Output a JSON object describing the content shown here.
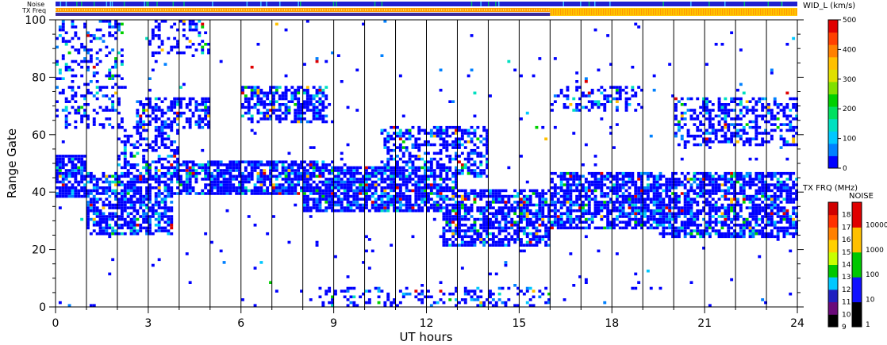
{
  "chart_data": {
    "type": "heatmap",
    "title": "",
    "xlabel": "UT hours",
    "ylabel": "Range Gate",
    "xlim": [
      0,
      24
    ],
    "ylim": [
      0,
      100
    ],
    "xticks": [
      0,
      3,
      6,
      9,
      12,
      15,
      18,
      21,
      24
    ],
    "yticks": [
      0,
      20,
      40,
      60,
      80,
      100
    ],
    "hour_grid": true,
    "top_strip_labels": {
      "noise": "Noise",
      "txfreq": "TX Freq"
    },
    "frequency_change_hour": 16,
    "width_colorbar": {
      "title": "WID_L (km/s)",
      "ticks": [
        0,
        100,
        200,
        300,
        400,
        500
      ],
      "range": [
        0,
        500
      ],
      "colors": [
        "#0000ff",
        "#0080ff",
        "#00c8ff",
        "#00e0c0",
        "#00e060",
        "#00d000",
        "#80e000",
        "#e0e000",
        "#ffc000",
        "#ff8000",
        "#ff4000",
        "#e00000"
      ]
    },
    "txfreq_colorbar": {
      "title": "TX FRQ (MHz)",
      "ticks": [
        9,
        10,
        11,
        12,
        13,
        14,
        15,
        16,
        17,
        18
      ],
      "colors": [
        "#000000",
        "#6a0a7a",
        "#2020c0",
        "#00c8ff",
        "#00c800",
        "#c8ff00",
        "#ffd000",
        "#ff8000",
        "#ff3000",
        "#d00000"
      ]
    },
    "noise_colorbar": {
      "title": "NOISE",
      "ticks": [
        "1",
        "10",
        "100",
        "1000",
        "10000"
      ],
      "colors": [
        "#000000",
        "#1010ff",
        "#00c800",
        "#ffc000",
        "#e00000"
      ]
    },
    "bands": [
      {
        "name": "",
        "x0": 0.0,
        "x1": 1.0,
        "ylo": 38,
        "yhi": 52,
        "density": 0.8
      },
      {
        "name": "",
        "x0": 1.0,
        "x1": 3.8,
        "ylo": 25,
        "yhi": 46,
        "density": 0.65
      },
      {
        "name": "",
        "x0": 2.0,
        "x1": 4.0,
        "ylo": 40,
        "yhi": 62,
        "density": 0.5
      },
      {
        "name": "",
        "x0": 2.6,
        "x1": 5.0,
        "ylo": 62,
        "yhi": 72,
        "density": 0.55
      },
      {
        "name": "",
        "x0": 3.5,
        "x1": 9.0,
        "ylo": 39,
        "yhi": 50,
        "density": 0.75
      },
      {
        "name": "",
        "x0": 6.0,
        "x1": 8.8,
        "ylo": 64,
        "yhi": 76,
        "density": 0.6
      },
      {
        "name": "",
        "x0": 8.0,
        "x1": 13.0,
        "ylo": 33,
        "yhi": 48,
        "density": 0.8
      },
      {
        "name": "",
        "x0": 10.5,
        "x1": 14.0,
        "ylo": 45,
        "yhi": 62,
        "density": 0.45
      },
      {
        "name": "",
        "x0": 12.5,
        "x1": 16.0,
        "ylo": 21,
        "yhi": 40,
        "density": 0.7
      },
      {
        "name": "",
        "x0": 16.0,
        "x1": 20.0,
        "ylo": 27,
        "yhi": 46,
        "density": 0.75
      },
      {
        "name": "",
        "x0": 19.5,
        "x1": 24.0,
        "ylo": 24,
        "yhi": 46,
        "density": 0.7
      },
      {
        "name": "",
        "x0": 20.0,
        "x1": 24.0,
        "ylo": 56,
        "yhi": 72,
        "density": 0.45
      },
      {
        "name": "",
        "x0": 16.0,
        "x1": 19.0,
        "ylo": 68,
        "yhi": 76,
        "density": 0.4
      },
      {
        "name": "",
        "x0": 8.5,
        "x1": 16.0,
        "ylo": 0,
        "yhi": 6,
        "density": 0.3
      },
      {
        "name": "",
        "x0": 0.0,
        "x1": 2.2,
        "ylo": 62,
        "yhi": 100,
        "density": 0.3
      },
      {
        "name": "",
        "x0": 3.0,
        "x1": 5.0,
        "ylo": 88,
        "yhi": 100,
        "density": 0.3
      }
    ],
    "background_scatter_density": 0.012
  }
}
